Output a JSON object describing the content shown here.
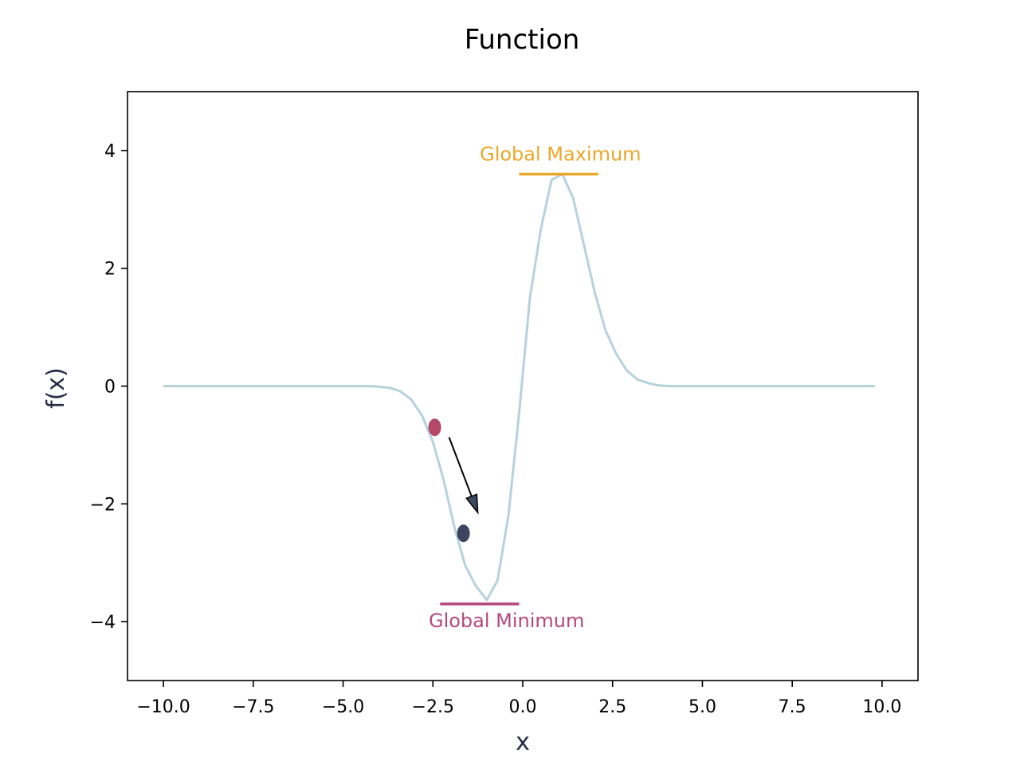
{
  "chart_data": {
    "type": "line",
    "title": "Function",
    "xlabel": "x",
    "ylabel": "f(x)",
    "xlim": [
      -11,
      11
    ],
    "ylim": [
      -5,
      5
    ],
    "xticks": [
      -10.0,
      -7.5,
      -5.0,
      -2.5,
      0.0,
      2.5,
      5.0,
      7.5,
      10.0
    ],
    "xtick_labels": [
      "−10.0",
      "−7.5",
      "−5.0",
      "−2.5",
      "0.0",
      "2.5",
      "5.0",
      "7.5",
      "10.0"
    ],
    "yticks": [
      -4,
      -2,
      0,
      2,
      4
    ],
    "ytick_labels": [
      "−4",
      "−2",
      "0",
      "2",
      "4"
    ],
    "grid": false,
    "series": [
      {
        "color": "#b7d2dc",
        "x": [
          -10.0,
          -9.7,
          -9.4,
          -9.1,
          -8.8,
          -8.5,
          -8.2,
          -7.9,
          -7.6,
          -7.3,
          -7.0,
          -6.7,
          -6.4,
          -6.1,
          -5.8,
          -5.5,
          -5.2,
          -4.9,
          -4.6,
          -4.3,
          -4.0,
          -3.7,
          -3.4,
          -3.1,
          -2.8,
          -2.5,
          -2.2,
          -1.9,
          -1.6,
          -1.3,
          -1.0,
          -0.7,
          -0.4,
          -0.1,
          0.2,
          0.5,
          0.8,
          1.1,
          1.4,
          1.7,
          2.0,
          2.3,
          2.6,
          2.9,
          3.2,
          3.5,
          3.8,
          4.1,
          4.4,
          4.7,
          5.0,
          5.3,
          5.6,
          5.9,
          6.2,
          6.5,
          6.8,
          7.1,
          7.4,
          7.7,
          8.0,
          8.3,
          8.6,
          8.9,
          9.2,
          9.5,
          9.8
        ],
        "y": [
          0,
          0,
          0,
          0,
          0,
          0,
          0,
          0,
          0,
          0,
          0,
          0,
          0,
          0,
          0,
          0,
          0,
          0,
          0,
          0,
          -0.01,
          -0.03,
          -0.09,
          -0.23,
          -0.5,
          -0.95,
          -1.6,
          -2.4,
          -3.05,
          -3.4,
          -3.63,
          -3.3,
          -2.2,
          -0.45,
          1.5,
          2.65,
          3.5,
          3.6,
          3.2,
          2.4,
          1.6,
          0.95,
          0.55,
          0.26,
          0.11,
          0.05,
          0.01,
          0,
          0,
          0,
          0,
          0,
          0,
          0,
          0,
          0,
          0,
          0,
          0,
          0,
          0,
          0,
          0,
          0,
          0,
          0,
          0
        ]
      }
    ],
    "points": [
      {
        "x": -2.45,
        "y": -0.7,
        "color": "#b5486a"
      },
      {
        "x": -1.65,
        "y": -2.5,
        "color": "#3d4460"
      }
    ],
    "arrow": {
      "from": [
        -2.05,
        -0.87
      ],
      "to": [
        -1.25,
        -2.15
      ],
      "color": "#000000"
    },
    "annotations": [
      {
        "label": "Global Maximum",
        "color": "#eba728",
        "x": 1.05,
        "y": 3.6,
        "line_x": [
          -0.1,
          2.1
        ],
        "position": "above"
      },
      {
        "label": "Global Minimum",
        "color": "#b5487e",
        "x": -0.45,
        "y": -3.7,
        "line_x": [
          -2.3,
          -0.1
        ],
        "position": "below"
      }
    ]
  }
}
